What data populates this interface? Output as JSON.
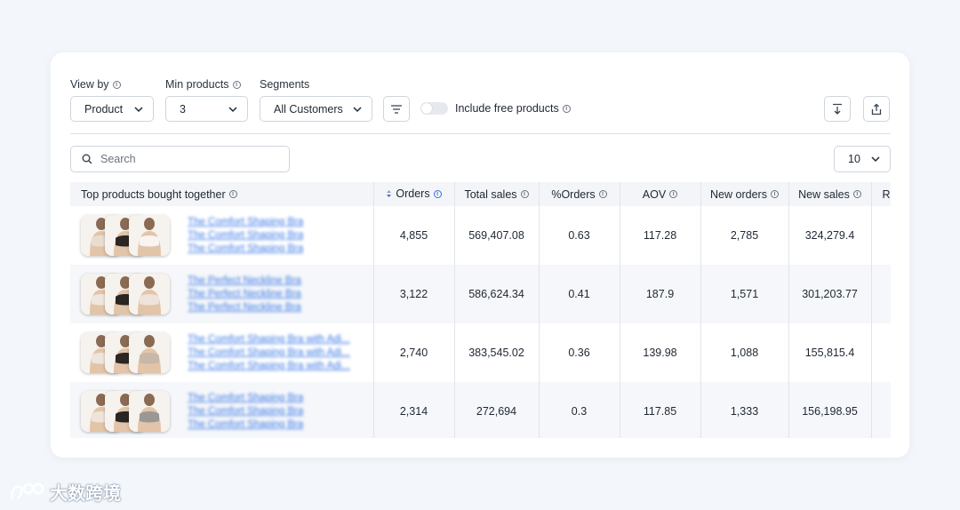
{
  "controls": {
    "view_by": {
      "label": "View by",
      "value": "Product"
    },
    "min_products": {
      "label": "Min products",
      "value": "3"
    },
    "segments": {
      "label": "Segments",
      "value": "All Customers"
    },
    "include_free": {
      "label": "Include free products",
      "enabled": false
    },
    "search_placeholder": "Search",
    "page_size": "10"
  },
  "table": {
    "columns": [
      "Top products bought together",
      "Orders",
      "Total sales",
      "%Orders",
      "AOV",
      "New orders",
      "New sales",
      "R"
    ],
    "sorted_column": "Orders",
    "rows": [
      {
        "products": [
          "The Comfort Shaping Bra",
          "The Comfort Shaping Bra",
          "The Comfort Shaping Bra"
        ],
        "orders": "4,855",
        "total_sales": "569,407.08",
        "pct_orders": "0.63",
        "aov": "117.28",
        "new_orders": "2,785",
        "new_sales": "324,279.4"
      },
      {
        "products": [
          "The Perfect Neckline Bra",
          "The Perfect Neckline Bra",
          "The Perfect Neckline Bra"
        ],
        "orders": "3,122",
        "total_sales": "586,624.34",
        "pct_orders": "0.41",
        "aov": "187.9",
        "new_orders": "1,571",
        "new_sales": "301,203.77"
      },
      {
        "products": [
          "The Comfort Shaping Bra with Adi...",
          "The Comfort Shaping Bra with Adi...",
          "The Comfort Shaping Bra with Adi..."
        ],
        "orders": "2,740",
        "total_sales": "383,545.02",
        "pct_orders": "0.36",
        "aov": "139.98",
        "new_orders": "1,088",
        "new_sales": "155,815.4"
      },
      {
        "products": [
          "The Comfort Shaping Bra",
          "The Comfort Shaping Bra",
          "The Comfort Shaping Bra"
        ],
        "orders": "2,314",
        "total_sales": "272,694",
        "pct_orders": "0.3",
        "aov": "117.85",
        "new_orders": "1,333",
        "new_sales": "156,198.95"
      }
    ]
  },
  "watermark": "大数跨境",
  "colors": {
    "accent": "#3a78e6",
    "header_bg": "#f3f5f8",
    "stripe": "#f5f7fa"
  }
}
